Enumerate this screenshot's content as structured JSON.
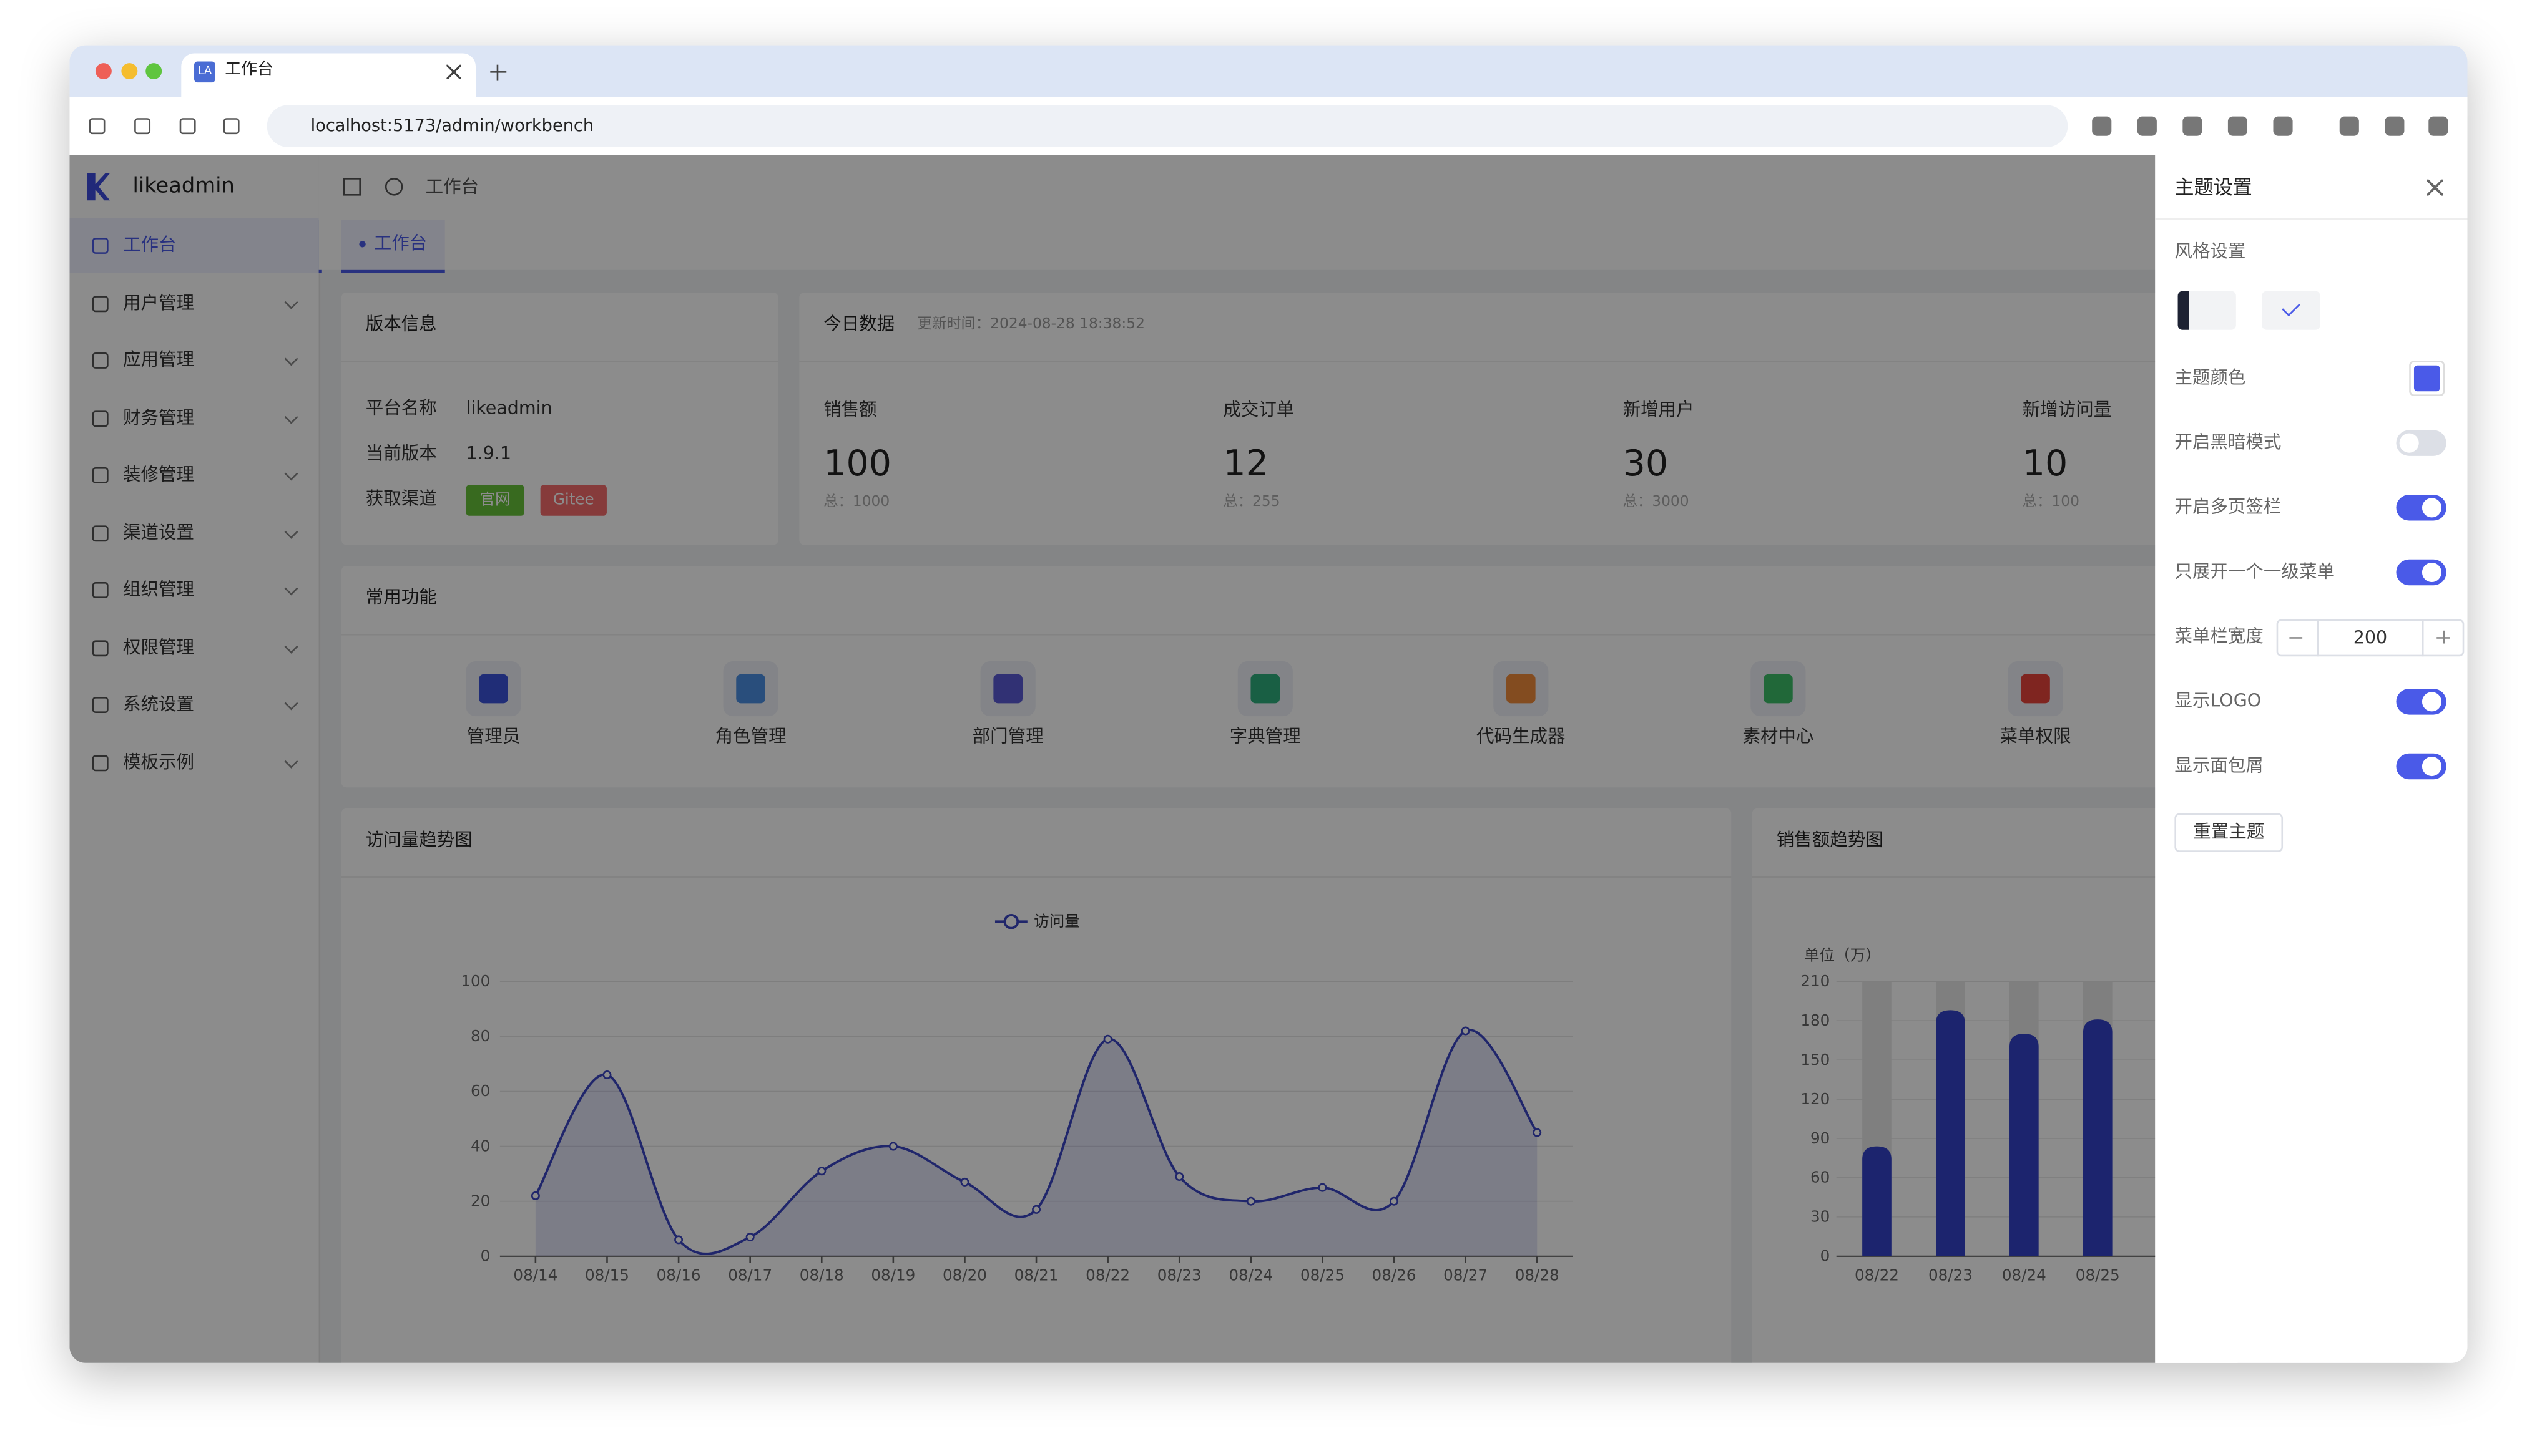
{
  "browser": {
    "favicon": "LA",
    "tab_title": "工作台",
    "url": "localhost:5173/admin/workbench"
  },
  "sidebar": {
    "logo": "likeadmin",
    "menu": [
      "工作台",
      "用户管理",
      "应用管理",
      "财务管理",
      "装修管理",
      "渠道设置",
      "组织管理",
      "权限管理",
      "系统设置",
      "模板示例"
    ]
  },
  "header": {
    "breadcrumb": "工作台",
    "tab": "工作台"
  },
  "version_card": {
    "title": "版本信息",
    "rows": [
      {
        "label": "平台名称",
        "value": "likeadmin"
      },
      {
        "label": "当前版本",
        "value": "1.9.1"
      }
    ],
    "channel_label": "获取渠道",
    "channels": [
      "官网",
      "Gitee"
    ]
  },
  "today_card": {
    "title": "今日数据",
    "update_time": "更新时间：2024-08-28 18:38:52",
    "stats": [
      {
        "label": "销售额",
        "value": 100,
        "total": "总：1000"
      },
      {
        "label": "成交订单",
        "value": 12,
        "total": "总：255"
      },
      {
        "label": "新增用户",
        "value": 30,
        "total": "总：3000"
      },
      {
        "label": "新增访问量",
        "value": 10,
        "total": "总：100"
      }
    ]
  },
  "shortcuts": {
    "title": "常用功能",
    "items": [
      "管理员",
      "角色管理",
      "部门管理",
      "字典管理",
      "代码生成器",
      "素材中心",
      "菜单权限"
    ]
  },
  "visit_chart": {
    "type": "line",
    "title": "访问量趋势图",
    "categories": [
      "08/14",
      "08/15",
      "08/16",
      "08/17",
      "08/18",
      "08/19",
      "08/20",
      "08/21",
      "08/22",
      "08/23",
      "08/24",
      "08/25",
      "08/26",
      "08/27",
      "08/28"
    ],
    "series": [
      {
        "name": "访问量",
        "color": "#3b46c4",
        "values": [
          22,
          66,
          6,
          7,
          31,
          40,
          27,
          17,
          79,
          29,
          20,
          25,
          20,
          82,
          45
        ]
      }
    ],
    "ylim": [
      0,
      100
    ],
    "yticks": [
      0,
      20,
      40,
      60,
      80,
      100
    ],
    "grid": true
  },
  "sales_chart": {
    "type": "bar",
    "title": "销售额趋势图",
    "unit_label": "单位（万）",
    "categories": [
      "08/22",
      "08/23",
      "08/24",
      "08/25"
    ],
    "values": [
      84,
      188,
      170,
      181
    ],
    "color": "#3443c9",
    "ylim": [
      0,
      210
    ],
    "yticks": [
      0,
      30,
      60,
      90,
      120,
      150,
      180,
      210
    ],
    "grid": true
  },
  "theme_drawer": {
    "title": "主题设置",
    "style_label": "风格设置",
    "color_label": "主题颜色",
    "color": "#4a5ae8",
    "switches": [
      {
        "label": "开启黑暗模式",
        "on": false
      },
      {
        "label": "开启多页签栏",
        "on": true
      },
      {
        "label": "只展开一个一级菜单",
        "on": true
      },
      {
        "label": "显示LOGO",
        "on": true
      },
      {
        "label": "显示面包屑",
        "on": true
      }
    ],
    "menu_width_label": "菜单栏宽度",
    "menu_width": 200,
    "reset": "重置主题"
  }
}
